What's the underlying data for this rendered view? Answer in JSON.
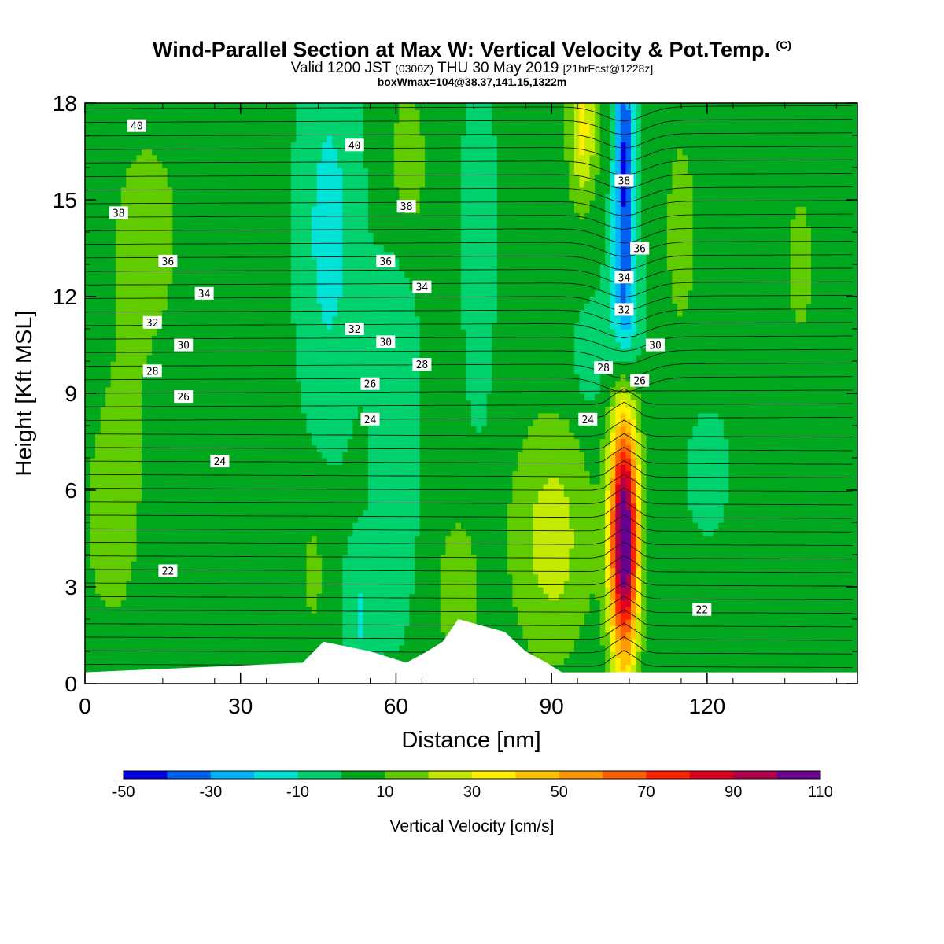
{
  "header": {
    "title": "Wind-Parallel Section at Max W: Vertical Velocity & Pot.Temp.",
    "copyright": "(C)",
    "valid_prefix": "Valid 1200 JST",
    "valid_z": "(0300Z)",
    "valid_date": "THU 30 May 2019",
    "forecast": "[21hrFcst@1228z]",
    "boxinfo": "boxWmax=104@38.37,141.15,1322m"
  },
  "chart_data": {
    "type": "heatmap",
    "title": "Wind-Parallel Section at Max W: Vertical Velocity & Pot.Temp.",
    "xlabel": "Distance [nm]",
    "ylabel": "Height [Kft MSL]",
    "xlim": [
      0,
      149
    ],
    "ylim": [
      0,
      18
    ],
    "x_ticks": [
      0,
      30,
      60,
      90,
      120
    ],
    "y_ticks": [
      0,
      3,
      6,
      9,
      12,
      15,
      18
    ],
    "colorbar": {
      "label": "Vertical Velocity [cm/s]",
      "tick_labels": [
        "-50",
        "-30",
        "-10",
        "10",
        "30",
        "50",
        "70",
        "90",
        "110"
      ],
      "levels": [
        -50,
        -40,
        -30,
        -20,
        -10,
        0,
        10,
        20,
        30,
        40,
        50,
        60,
        70,
        80,
        90,
        100,
        110
      ],
      "colors": [
        "#0000e6",
        "#0060f0",
        "#00b4ff",
        "#00e4d8",
        "#00d26e",
        "#00a81e",
        "#60cc00",
        "#c4ea00",
        "#fff000",
        "#ffc400",
        "#ff9a00",
        "#ff6000",
        "#ff2400",
        "#e0001e",
        "#b0004a",
        "#6a0090"
      ]
    },
    "wmax": {
      "value": 104,
      "x": 104,
      "y": 4.5
    },
    "terrain": [
      [
        42,
        0.65
      ],
      [
        46,
        1.3
      ],
      [
        55,
        1.0
      ],
      [
        62,
        0.65
      ],
      [
        66,
        1.0
      ],
      [
        69,
        1.3
      ],
      [
        72,
        2.0
      ],
      [
        81,
        1.6
      ],
      [
        85,
        1.0
      ],
      [
        89,
        0.65
      ],
      [
        92,
        0.35
      ]
    ],
    "theta_labels": [
      {
        "text": "40",
        "x": 10,
        "y": 17.3
      },
      {
        "text": "40",
        "x": 52,
        "y": 16.7
      },
      {
        "text": "38",
        "x": 6.5,
        "y": 14.6
      },
      {
        "text": "38",
        "x": 62,
        "y": 14.8
      },
      {
        "text": "38",
        "x": 104,
        "y": 15.6
      },
      {
        "text": "36",
        "x": 16,
        "y": 13.1
      },
      {
        "text": "36",
        "x": 58,
        "y": 13.1
      },
      {
        "text": "36",
        "x": 107,
        "y": 13.5
      },
      {
        "text": "34",
        "x": 23,
        "y": 12.1
      },
      {
        "text": "34",
        "x": 65,
        "y": 12.3
      },
      {
        "text": "34",
        "x": 104,
        "y": 12.6
      },
      {
        "text": "32",
        "x": 13,
        "y": 11.2
      },
      {
        "text": "32",
        "x": 52,
        "y": 11.0
      },
      {
        "text": "32",
        "x": 104,
        "y": 11.6
      },
      {
        "text": "30",
        "x": 19,
        "y": 10.5
      },
      {
        "text": "30",
        "x": 58,
        "y": 10.6
      },
      {
        "text": "30",
        "x": 110,
        "y": 10.5
      },
      {
        "text": "28",
        "x": 13,
        "y": 9.7
      },
      {
        "text": "28",
        "x": 65,
        "y": 9.9
      },
      {
        "text": "28",
        "x": 100,
        "y": 9.8
      },
      {
        "text": "26",
        "x": 19,
        "y": 8.9
      },
      {
        "text": "26",
        "x": 55,
        "y": 9.3
      },
      {
        "text": "26",
        "x": 107,
        "y": 9.4
      },
      {
        "text": "24",
        "x": 26,
        "y": 6.9
      },
      {
        "text": "24",
        "x": 55,
        "y": 8.2
      },
      {
        "text": "24",
        "x": 97,
        "y": 8.2
      },
      {
        "text": "22",
        "x": 16,
        "y": 3.5
      },
      {
        "text": "22",
        "x": 119,
        "y": 2.3
      }
    ]
  }
}
